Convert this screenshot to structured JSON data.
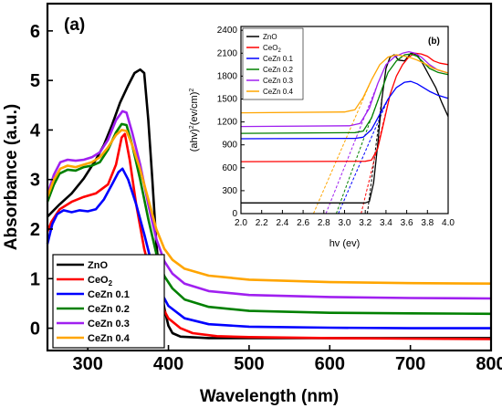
{
  "chart_data": [
    {
      "type": "line",
      "panel_label": "(a)",
      "xlabel": "Wavelength (nm)",
      "ylabel": "Absorbance (a.u.)",
      "xlim": [
        250,
        800
      ],
      "ylim": [
        -0.45,
        6.55
      ],
      "x_ticks": [
        "300",
        "400",
        "500",
        "600",
        "700",
        "800"
      ],
      "y_ticks": [
        "0",
        "1",
        "2",
        "3",
        "4",
        "5",
        "6"
      ],
      "legend_position": "bottom-left",
      "series": [
        {
          "name": "ZnO",
          "legend_base": "ZnO",
          "legend_sub": "",
          "color": "#000000",
          "points": [
            [
              250,
              2.25
            ],
            [
              265,
              2.5
            ],
            [
              280,
              2.72
            ],
            [
              295,
              3.02
            ],
            [
              310,
              3.4
            ],
            [
              320,
              3.7
            ],
            [
              330,
              4.1
            ],
            [
              340,
              4.55
            ],
            [
              350,
              4.9
            ],
            [
              358,
              5.15
            ],
            [
              365,
              5.22
            ],
            [
              370,
              5.15
            ],
            [
              375,
              4.2
            ],
            [
              380,
              3.0
            ],
            [
              385,
              1.7
            ],
            [
              390,
              0.9
            ],
            [
              395,
              0.4
            ],
            [
              400,
              0.05
            ],
            [
              405,
              -0.1
            ],
            [
              415,
              -0.17
            ],
            [
              450,
              -0.2
            ],
            [
              500,
              -0.2
            ],
            [
              600,
              -0.2
            ],
            [
              700,
              -0.2
            ],
            [
              800,
              -0.2
            ]
          ]
        },
        {
          "name": "CeO2",
          "legend_base": "CeO",
          "legend_sub": "2",
          "color": "#ff0000",
          "points": [
            [
              250,
              1.95
            ],
            [
              255,
              2.15
            ],
            [
              265,
              2.4
            ],
            [
              280,
              2.55
            ],
            [
              295,
              2.65
            ],
            [
              310,
              2.72
            ],
            [
              325,
              2.9
            ],
            [
              335,
              3.3
            ],
            [
              342,
              3.85
            ],
            [
              346,
              3.92
            ],
            [
              352,
              3.4
            ],
            [
              360,
              2.5
            ],
            [
              370,
              1.6
            ],
            [
              380,
              0.95
            ],
            [
              390,
              0.5
            ],
            [
              400,
              0.2
            ],
            [
              415,
              0.0
            ],
            [
              430,
              -0.1
            ],
            [
              460,
              -0.16
            ],
            [
              500,
              -0.18
            ],
            [
              600,
              -0.2
            ],
            [
              700,
              -0.21
            ],
            [
              800,
              -0.22
            ]
          ]
        },
        {
          "name": "CeZn 0.1",
          "legend_base": "CeZn 0.1",
          "legend_sub": "",
          "color": "#0000ff",
          "points": [
            [
              250,
              1.7
            ],
            [
              256,
              2.1
            ],
            [
              262,
              2.3
            ],
            [
              270,
              2.38
            ],
            [
              280,
              2.34
            ],
            [
              290,
              2.38
            ],
            [
              300,
              2.36
            ],
            [
              310,
              2.4
            ],
            [
              320,
              2.6
            ],
            [
              330,
              2.9
            ],
            [
              338,
              3.15
            ],
            [
              343,
              3.22
            ],
            [
              350,
              3.0
            ],
            [
              360,
              2.5
            ],
            [
              370,
              1.9
            ],
            [
              380,
              1.25
            ],
            [
              390,
              0.75
            ],
            [
              400,
              0.45
            ],
            [
              420,
              0.2
            ],
            [
              450,
              0.08
            ],
            [
              500,
              0.03
            ],
            [
              600,
              0.01
            ],
            [
              700,
              0.0
            ],
            [
              800,
              0.0
            ]
          ]
        },
        {
          "name": "CeZn 0.2",
          "legend_base": "CeZn 0.2",
          "legend_sub": "",
          "color": "#008000",
          "points": [
            [
              250,
              2.55
            ],
            [
              258,
              2.9
            ],
            [
              265,
              3.12
            ],
            [
              275,
              3.2
            ],
            [
              285,
              3.18
            ],
            [
              295,
              3.25
            ],
            [
              305,
              3.28
            ],
            [
              315,
              3.35
            ],
            [
              325,
              3.6
            ],
            [
              335,
              3.95
            ],
            [
              342,
              4.12
            ],
            [
              348,
              4.1
            ],
            [
              355,
              3.7
            ],
            [
              365,
              3.0
            ],
            [
              375,
              2.2
            ],
            [
              385,
              1.5
            ],
            [
              395,
              1.05
            ],
            [
              405,
              0.8
            ],
            [
              420,
              0.58
            ],
            [
              450,
              0.43
            ],
            [
              500,
              0.35
            ],
            [
              600,
              0.31
            ],
            [
              700,
              0.3
            ],
            [
              800,
              0.29
            ]
          ]
        },
        {
          "name": "CeZn 0.3",
          "legend_base": "CeZn 0.3",
          "legend_sub": "",
          "color": "#a020f0",
          "points": [
            [
              250,
              2.7
            ],
            [
              258,
              3.1
            ],
            [
              266,
              3.35
            ],
            [
              275,
              3.4
            ],
            [
              285,
              3.38
            ],
            [
              295,
              3.4
            ],
            [
              305,
              3.45
            ],
            [
              315,
              3.55
            ],
            [
              325,
              3.8
            ],
            [
              335,
              4.2
            ],
            [
              343,
              4.38
            ],
            [
              348,
              4.35
            ],
            [
              355,
              3.95
            ],
            [
              365,
              3.3
            ],
            [
              375,
              2.5
            ],
            [
              385,
              1.8
            ],
            [
              395,
              1.35
            ],
            [
              405,
              1.1
            ],
            [
              420,
              0.9
            ],
            [
              450,
              0.75
            ],
            [
              500,
              0.67
            ],
            [
              600,
              0.63
            ],
            [
              700,
              0.61
            ],
            [
              800,
              0.6
            ]
          ]
        },
        {
          "name": "CeZn 0.4",
          "legend_base": "CeZn 0.4",
          "legend_sub": "",
          "color": "#ffa500",
          "points": [
            [
              250,
              2.65
            ],
            [
              258,
              3.0
            ],
            [
              266,
              3.22
            ],
            [
              275,
              3.28
            ],
            [
              285,
              3.25
            ],
            [
              295,
              3.3
            ],
            [
              305,
              3.35
            ],
            [
              315,
              3.45
            ],
            [
              325,
              3.65
            ],
            [
              335,
              3.9
            ],
            [
              342,
              4.0
            ],
            [
              348,
              3.98
            ],
            [
              355,
              3.7
            ],
            [
              365,
              3.2
            ],
            [
              375,
              2.6
            ],
            [
              385,
              2.0
            ],
            [
              395,
              1.6
            ],
            [
              405,
              1.38
            ],
            [
              420,
              1.2
            ],
            [
              450,
              1.06
            ],
            [
              500,
              0.98
            ],
            [
              600,
              0.93
            ],
            [
              700,
              0.91
            ],
            [
              800,
              0.9
            ]
          ]
        }
      ]
    },
    {
      "type": "line",
      "panel_label": "(b)",
      "xlabel": "hv (ev)",
      "ylabel_parts": {
        "base": "(ahv)",
        "exp1": "2",
        "mid": "(ev/cm)",
        "exp2": "2"
      },
      "xlim": [
        2.0,
        4.0
      ],
      "ylim": [
        0,
        2450
      ],
      "x_ticks": [
        "2.0",
        "2.2",
        "2.4",
        "2.6",
        "2.8",
        "3.0",
        "3.2",
        "3.4",
        "3.6",
        "3.8",
        "4.0"
      ],
      "y_ticks": [
        "0",
        "300",
        "600",
        "900",
        "1200",
        "1500",
        "1800",
        "2100",
        "2400"
      ],
      "legend_position": "top-left",
      "series": [
        {
          "name": "ZnO",
          "legend_base": "ZnO",
          "legend_sub": "",
          "color": "#000000",
          "points": [
            [
              2.0,
              140
            ],
            [
              3.2,
              140
            ],
            [
              3.24,
              160
            ],
            [
              3.28,
              400
            ],
            [
              3.32,
              900
            ],
            [
              3.36,
              1500
            ],
            [
              3.4,
              1900
            ],
            [
              3.44,
              2050
            ],
            [
              3.48,
              2080
            ],
            [
              3.52,
              2010
            ],
            [
              3.58,
              2000
            ],
            [
              3.64,
              2100
            ],
            [
              3.7,
              2080
            ],
            [
              3.76,
              1950
            ],
            [
              3.82,
              1800
            ],
            [
              3.88,
              1650
            ],
            [
              3.94,
              1450
            ],
            [
              4.0,
              1270
            ]
          ],
          "fit": [
            [
              3.22,
              0
            ],
            [
              3.36,
              1500
            ]
          ]
        },
        {
          "name": "CeO2",
          "legend_base": "CeO",
          "legend_sub": "2",
          "color": "#ff0000",
          "points": [
            [
              2.0,
              680
            ],
            [
              3.2,
              685
            ],
            [
              3.26,
              700
            ],
            [
              3.32,
              850
            ],
            [
              3.38,
              1200
            ],
            [
              3.44,
              1560
            ],
            [
              3.5,
              1800
            ],
            [
              3.56,
              1950
            ],
            [
              3.62,
              2050
            ],
            [
              3.68,
              2100
            ],
            [
              3.74,
              2090
            ],
            [
              3.8,
              2060
            ],
            [
              3.86,
              2000
            ],
            [
              3.92,
              1970
            ],
            [
              4.0,
              1950
            ]
          ],
          "fit": [
            [
              3.16,
              0
            ],
            [
              3.44,
              1560
            ]
          ]
        },
        {
          "name": "CeZn 0.1",
          "legend_base": "CeZn 0.1",
          "legend_sub": "",
          "color": "#0000ff",
          "points": [
            [
              2.0,
              980
            ],
            [
              3.1,
              985
            ],
            [
              3.18,
              1000
            ],
            [
              3.26,
              1100
            ],
            [
              3.34,
              1300
            ],
            [
              3.42,
              1500
            ],
            [
              3.5,
              1650
            ],
            [
              3.58,
              1720
            ],
            [
              3.64,
              1730
            ],
            [
              3.7,
              1700
            ],
            [
              3.76,
              1650
            ],
            [
              3.82,
              1600
            ],
            [
              3.9,
              1550
            ],
            [
              4.0,
              1510
            ]
          ],
          "fit": [
            [
              2.94,
              0
            ],
            [
              3.42,
              1500
            ]
          ]
        },
        {
          "name": "CeZn 0.2",
          "legend_base": "CeZn 0.2",
          "legend_sub": "",
          "color": "#008000",
          "points": [
            [
              2.0,
              1050
            ],
            [
              3.1,
              1060
            ],
            [
              3.18,
              1080
            ],
            [
              3.26,
              1250
            ],
            [
              3.34,
              1550
            ],
            [
              3.42,
              1850
            ],
            [
              3.5,
              2000
            ],
            [
              3.58,
              2080
            ],
            [
              3.64,
              2090
            ],
            [
              3.7,
              2060
            ],
            [
              3.76,
              1980
            ],
            [
              3.82,
              1900
            ],
            [
              3.9,
              1850
            ],
            [
              4.0,
              1820
            ]
          ],
          "fit": [
            [
              2.92,
              0
            ],
            [
              3.38,
              1700
            ]
          ]
        },
        {
          "name": "CeZn 0.3",
          "legend_base": "CeZn 0.3",
          "legend_sub": "",
          "color": "#a020f0",
          "points": [
            [
              2.0,
              1140
            ],
            [
              3.05,
              1150
            ],
            [
              3.15,
              1180
            ],
            [
              3.24,
              1380
            ],
            [
              3.32,
              1700
            ],
            [
              3.4,
              1950
            ],
            [
              3.48,
              2050
            ],
            [
              3.56,
              2100
            ],
            [
              3.62,
              2120
            ],
            [
              3.68,
              2100
            ],
            [
              3.74,
              2050
            ],
            [
              3.82,
              1950
            ],
            [
              3.9,
              1880
            ],
            [
              4.0,
              1840
            ]
          ],
          "fit": [
            [
              2.82,
              0
            ],
            [
              3.32,
              1700
            ]
          ]
        },
        {
          "name": "CeZn 0.4",
          "legend_base": "CeZn 0.4",
          "legend_sub": "",
          "color": "#ffa500",
          "points": [
            [
              2.0,
              1320
            ],
            [
              3.0,
              1330
            ],
            [
              3.1,
              1360
            ],
            [
              3.18,
              1520
            ],
            [
              3.26,
              1750
            ],
            [
              3.34,
              1950
            ],
            [
              3.42,
              2050
            ],
            [
              3.5,
              2080
            ],
            [
              3.58,
              2060
            ],
            [
              3.64,
              2040
            ],
            [
              3.7,
              2010
            ],
            [
              3.78,
              1960
            ],
            [
              3.86,
              1900
            ],
            [
              4.0,
              1840
            ]
          ],
          "fit": [
            [
              2.7,
              0
            ],
            [
              3.26,
              1750
            ]
          ]
        }
      ]
    }
  ]
}
